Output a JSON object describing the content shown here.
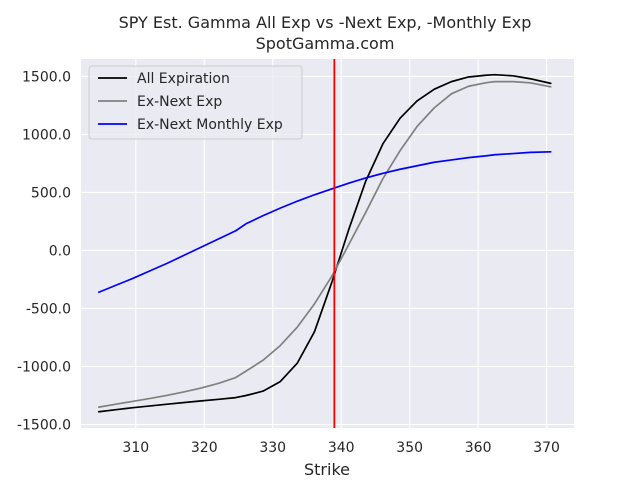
{
  "chart_data": {
    "type": "line",
    "title": "SPY Est. Gamma All Exp vs -Next Exp, -Monthly Exp",
    "subtitle": "SpotGamma.com",
    "xlabel": "Strike",
    "ylabel": "",
    "xlim": [
      302,
      374
    ],
    "ylim": [
      -1530,
      1650
    ],
    "xticks": [
      310,
      320,
      330,
      340,
      350,
      360,
      370
    ],
    "xtick_labels": [
      "310",
      "320",
      "330",
      "340",
      "350",
      "360",
      "370"
    ],
    "yticks": [
      1500,
      1000,
      500,
      0,
      -500,
      -1000,
      -1500
    ],
    "ytick_labels": [
      "1500.0",
      "1000.0",
      "500.0",
      "0.0",
      "-500.0",
      "-1000.0",
      "-1500.0"
    ],
    "grid": true,
    "legend_position": "upper-left",
    "vline": {
      "x": 339,
      "color": "#ff0000"
    },
    "series": [
      {
        "name": "All Expiration",
        "color": "#000000",
        "x": [
          304.6,
          307.1,
          309.6,
          312.1,
          314.6,
          317.1,
          319.6,
          322.1,
          324.6,
          326.1,
          328.6,
          331.1,
          333.6,
          336.1,
          338.6,
          341.1,
          343.6,
          346.1,
          348.6,
          351.1,
          353.6,
          356.1,
          358.6,
          361.1,
          362.4,
          365.1,
          367.6,
          370.6
        ],
        "values": [
          -1390,
          -1372,
          -1355,
          -1340,
          -1325,
          -1310,
          -1296,
          -1283,
          -1268,
          -1250,
          -1212,
          -1130,
          -970,
          -700,
          -280,
          180,
          600,
          920,
          1140,
          1290,
          1390,
          1455,
          1495,
          1510,
          1515,
          1505,
          1480,
          1440
        ]
      },
      {
        "name": "Ex-Next Exp",
        "color": "#808080",
        "x": [
          304.6,
          307.1,
          309.6,
          312.1,
          314.6,
          317.1,
          319.6,
          322.1,
          324.6,
          326.1,
          328.6,
          331.1,
          333.6,
          336.1,
          338.6,
          341.1,
          343.6,
          346.1,
          348.6,
          351.1,
          353.6,
          356.1,
          358.6,
          361.1,
          362.4,
          365.1,
          367.6,
          370.6
        ],
        "values": [
          -1350,
          -1325,
          -1300,
          -1275,
          -1248,
          -1218,
          -1185,
          -1145,
          -1095,
          -1040,
          -945,
          -820,
          -660,
          -460,
          -225,
          50,
          330,
          620,
          860,
          1070,
          1230,
          1350,
          1415,
          1445,
          1455,
          1455,
          1445,
          1410
        ]
      },
      {
        "name": "Ex-Next Monthly Exp",
        "color": "#0000ff",
        "x": [
          304.6,
          307.1,
          309.6,
          312.1,
          314.6,
          317.1,
          319.6,
          322.1,
          324.6,
          326.1,
          328.6,
          331.1,
          333.6,
          336.1,
          338.6,
          341.1,
          343.6,
          346.1,
          348.6,
          351.1,
          353.6,
          356.1,
          358.6,
          361.1,
          362.4,
          365.1,
          367.6,
          370.6
        ],
        "values": [
          -360,
          -300,
          -240,
          -175,
          -110,
          -40,
          30,
          100,
          170,
          230,
          300,
          365,
          425,
          480,
          530,
          580,
          625,
          665,
          700,
          730,
          760,
          780,
          800,
          815,
          825,
          835,
          845,
          850
        ]
      }
    ]
  }
}
